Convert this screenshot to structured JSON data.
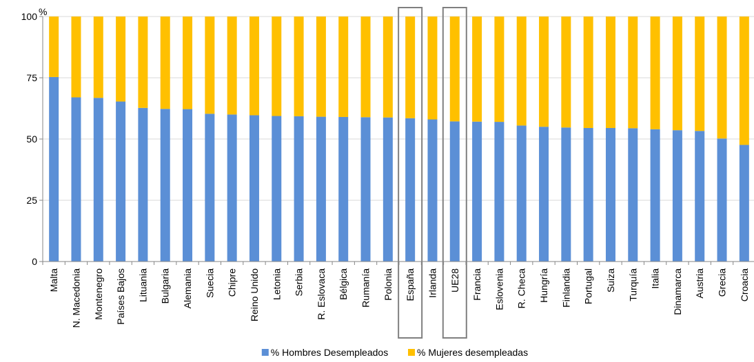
{
  "chart_data": {
    "type": "bar",
    "stacked": true,
    "y_unit_label": "%",
    "ylim": [
      0,
      100
    ],
    "y_ticks": [
      0,
      25,
      50,
      75,
      100
    ],
    "y_tick_labels": [
      "0",
      "25",
      "50",
      "75",
      "100"
    ],
    "grid": true,
    "legend_position": "bottom",
    "categories": [
      "Malta",
      "N. Macedonia",
      "Montenegro",
      "Países Bajos",
      "Lituania",
      "Bulgaria",
      "Alemania",
      "Suecia",
      "Chipre",
      "Reino Unido",
      "Letonia",
      "Serbia",
      "R. Eslovaca",
      "Bélgica",
      "Rumanía",
      "Polonia",
      "España",
      "Irlanda",
      "UE28",
      "Francia",
      "Eslovenia",
      "R. Checa",
      "Hungría",
      "Finlandia",
      "Portugal",
      "Suiza",
      "Turquía",
      "Italia",
      "Dinamarca",
      "Austria",
      "Grecia",
      "Croacia"
    ],
    "highlighted_categories": [
      "España",
      "UE28"
    ],
    "series": [
      {
        "name": "% Hombres Desempleados",
        "color": "#5B8FD6",
        "values": [
          75.3,
          67.0,
          66.8,
          65.3,
          62.7,
          62.3,
          62.2,
          60.3,
          60.0,
          59.7,
          59.4,
          59.3,
          59.1,
          59.0,
          58.9,
          58.8,
          58.5,
          58.0,
          57.2,
          57.1,
          57.0,
          55.5,
          55.0,
          54.7,
          54.5,
          54.5,
          54.4,
          54.0,
          53.6,
          53.3,
          50.2,
          47.6
        ]
      },
      {
        "name": "% Mujeres desempleadas",
        "color": "#FFC000",
        "values": [
          24.7,
          33.0,
          33.2,
          34.7,
          37.3,
          37.7,
          37.8,
          39.7,
          40.0,
          40.3,
          40.6,
          40.7,
          40.9,
          41.0,
          41.1,
          41.2,
          41.5,
          42.0,
          42.8,
          42.9,
          43.0,
          44.5,
          45.0,
          45.3,
          45.5,
          45.5,
          45.6,
          46.0,
          46.4,
          46.7,
          49.8,
          52.4
        ]
      }
    ]
  }
}
